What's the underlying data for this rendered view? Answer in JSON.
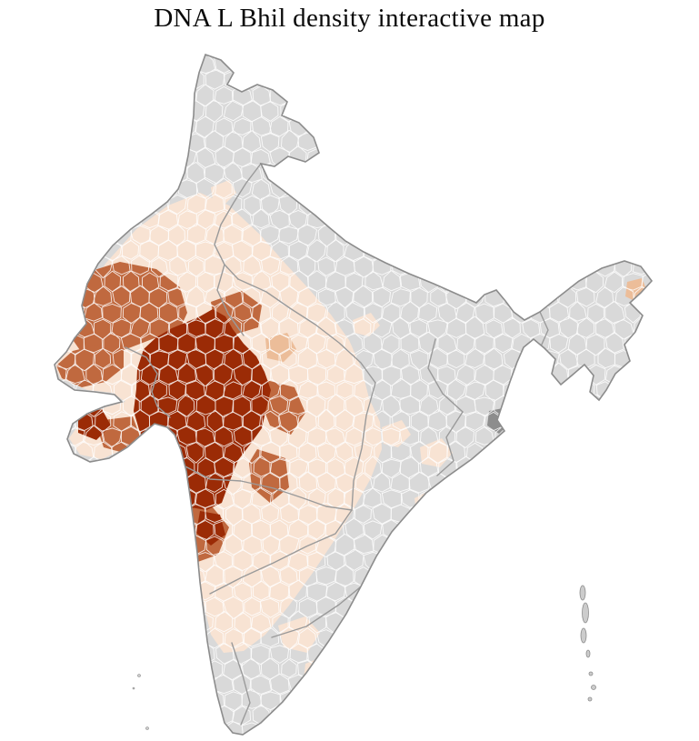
{
  "title": "DNA L Bhil density interactive map",
  "map": {
    "colors": {
      "page_background": "#ffffff",
      "no_data_fill": "#d9d9d9",
      "density_low": "#f8e3d3",
      "density_medium_low": "#ecbd99",
      "density_medium": "#c0693f",
      "density_high": "#9b2b06",
      "district_border": "#ffffff",
      "state_border": "#9a9a9a",
      "outline": "#8c8c8c",
      "island_fill": "#cccccc",
      "delta_fill": "#8d8d8d"
    }
  }
}
